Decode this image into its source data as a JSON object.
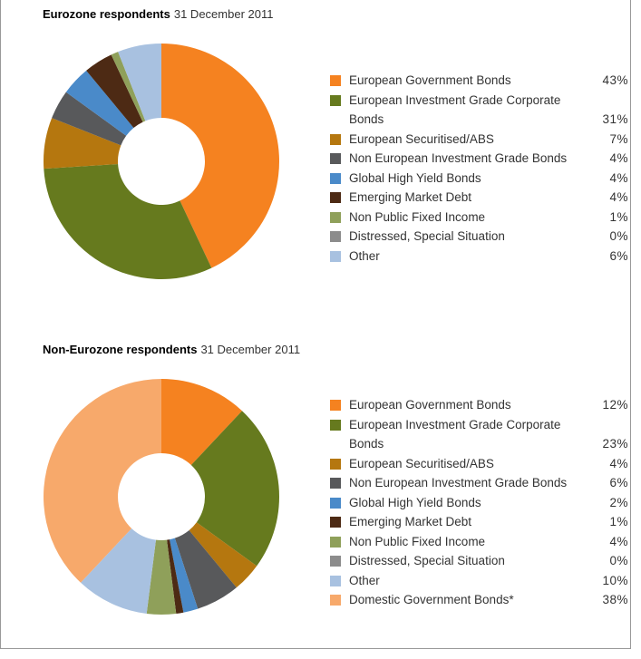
{
  "chart_data": [
    {
      "type": "pie",
      "title": "Eurozone respondents",
      "subtitle": "31 December 2011",
      "categories": [
        "European Government Bonds",
        "European Investment Grade Corporate Bonds",
        "European Securitised/ABS",
        "Non European Investment Grade Bonds",
        "Global High Yield Bonds",
        "Emerging Market Debt",
        "Non Public Fixed Income",
        "Distressed, Special Situation",
        "Other"
      ],
      "values": [
        43,
        31,
        7,
        4,
        4,
        4,
        1,
        0,
        6
      ],
      "value_labels": [
        "43%",
        "31%",
        "7%",
        "4%",
        "4%",
        "4%",
        "1%",
        "0%",
        "6%"
      ],
      "colors": [
        "#f58220",
        "#667a1e",
        "#b5770f",
        "#58595b",
        "#4a8ac9",
        "#4d2a14",
        "#8fa05a",
        "#8c8c8c",
        "#a8c1e0"
      ]
    },
    {
      "type": "pie",
      "title": "Non-Eurozone respondents",
      "subtitle": "31 December 2011",
      "categories": [
        "European Government Bonds",
        "European Investment Grade Corporate Bonds",
        "European Securitised/ABS",
        "Non European Investment Grade Bonds",
        "Global High Yield Bonds",
        "Emerging Market Debt",
        "Non Public Fixed Income",
        "Distressed, Special Situation",
        "Other",
        "Domestic Government Bonds*"
      ],
      "values": [
        12,
        23,
        4,
        6,
        2,
        1,
        4,
        0,
        10,
        38
      ],
      "value_labels": [
        "12%",
        "23%",
        "4%",
        "6%",
        "2%",
        "1%",
        "4%",
        "0%",
        "10%",
        "38%"
      ],
      "colors": [
        "#f58220",
        "#667a1e",
        "#b5770f",
        "#58595b",
        "#4a8ac9",
        "#4d2a14",
        "#8fa05a",
        "#8c8c8c",
        "#a8c1e0",
        "#f7a96b"
      ]
    }
  ]
}
